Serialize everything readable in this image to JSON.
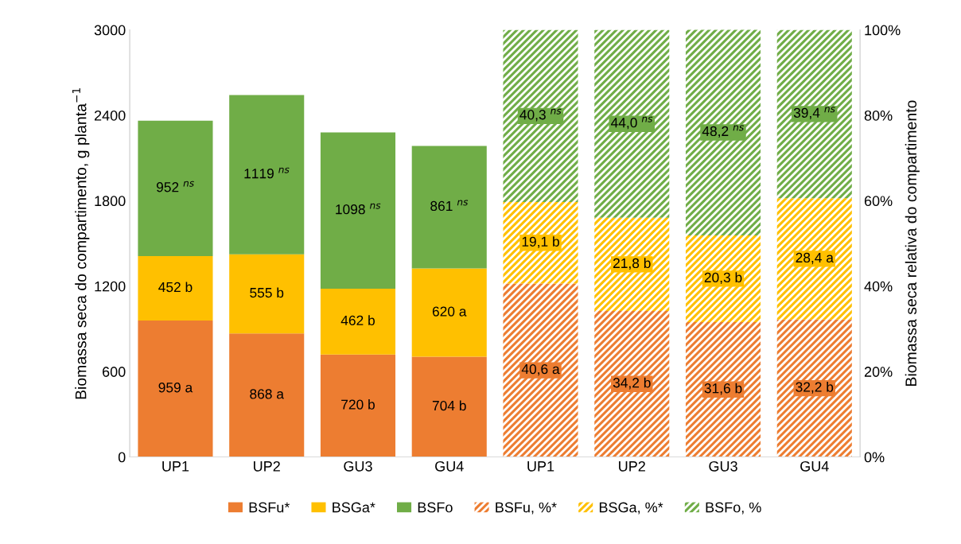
{
  "chart_data": {
    "type": "bar",
    "stacked": true,
    "legend": "bottom",
    "grid": false,
    "categories": [
      "UP1",
      "UP2",
      "GU3",
      "GU4",
      "UP1",
      "UP2",
      "GU3",
      "GU4"
    ],
    "ylabel": "Biomassa seca do compartimento, g planta$^{−1}$",
    "y2label": "Biomassa seca relativa do compartimento",
    "ylim": [
      0,
      3000
    ],
    "yticks": [
      0,
      600,
      1200,
      1800,
      2400,
      3000
    ],
    "y2lim": [
      0,
      100
    ],
    "y2ticks": [
      {
        "value": 0,
        "label": "0%"
      },
      {
        "value": 20,
        "label": "20%"
      },
      {
        "value": 40,
        "label": "40%"
      },
      {
        "value": 60,
        "label": "60%"
      },
      {
        "value": 80,
        "label": "80%"
      },
      {
        "value": 100,
        "label": "100%"
      }
    ],
    "series": [
      {
        "name": "BSFu*",
        "color": "#ed7d31",
        "values": [
          959,
          868,
          720,
          704,
          null,
          null,
          null,
          null
        ],
        "value_labels": [
          "959 a",
          "868 a",
          "720 b",
          "704 b",
          null,
          null,
          null,
          null
        ]
      },
      {
        "name": "BSGa*",
        "color": "#ffc000",
        "values": [
          452,
          555,
          462,
          620,
          null,
          null,
          null,
          null
        ],
        "value_labels": [
          "452 b",
          "555 b",
          "462 b",
          "620 a",
          null,
          null,
          null,
          null
        ]
      },
      {
        "name": "BSFo",
        "color": "#70ad47",
        "values": [
          952,
          1119,
          1098,
          861,
          null,
          null,
          null,
          null
        ],
        "value_labels": [
          "952 $^{ns}$",
          "1119 $^{ns}$",
          "1098 $^{ns}$",
          "861 $^{ns}$",
          null,
          null,
          null,
          null
        ]
      },
      {
        "name": "BSFu, %*",
        "color": "#ed7d31",
        "axis": "y2",
        "values": [
          null,
          null,
          null,
          null,
          40.6,
          34.2,
          31.6,
          32.2
        ],
        "value_labels": [
          null,
          null,
          null,
          null,
          "40,6 a",
          "34,2 b",
          "31,6 b",
          "32,2 b"
        ]
      },
      {
        "name": "BSGa, %*",
        "color": "#ffc000",
        "axis": "y2",
        "values": [
          null,
          null,
          null,
          null,
          19.1,
          21.8,
          20.3,
          28.4
        ],
        "value_labels": [
          null,
          null,
          null,
          null,
          "19,1 b",
          "21,8 b",
          "20,3 b",
          "28,4 a"
        ]
      },
      {
        "name": "BSFo, %",
        "color": "#70ad47",
        "axis": "y2",
        "values": [
          null,
          null,
          null,
          null,
          40.3,
          44.0,
          48.2,
          39.4
        ],
        "value_labels": [
          null,
          null,
          null,
          null,
          "40,3 $^{ns}$",
          "44,0 $^{ns}$",
          "48,2 $^{ns}$",
          "39,4 $^{ns}$"
        ]
      }
    ]
  }
}
